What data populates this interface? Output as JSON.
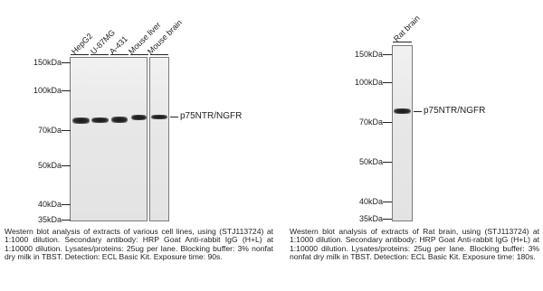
{
  "left_panel": {
    "lanes": [
      "HepG2",
      "U-87MG",
      "A-431",
      "Mouse liver",
      "Mouse brain"
    ],
    "markers": [
      "150kDa",
      "100kDa",
      "70kDa",
      "50kDa",
      "40kDa",
      "35kDa"
    ],
    "target": "p75NTR/NGFR",
    "caption": "Western blot analysis of extracts of various cell lines, using (STJ113724) at 1:1000 dilution. Secondary antibody: HRP Goat Anti-rabbit IgG (H+L) at 1:10000 dilution. Lysates/proteins: 25ug per lane. Blocking buffer: 3% nonfat dry milk in TBST. Detection: ECL Basic Kit. Exposure time: 90s."
  },
  "right_panel": {
    "lanes": [
      "Rat brain"
    ],
    "markers": [
      "150kDa",
      "100kDa",
      "70kDa",
      "50kDa",
      "40kDa",
      "35kDa"
    ],
    "target": "p75NTR/NGFR",
    "caption": "Western blot analysis of extracts of Rat brain, using (STJ113724) at 1:1000 dilution. Secondary antibody: HRP Goat Anti-rabbit IgG (H+L) at 1:10000 dilution. Lysates/proteins: 25ug per lane. Blocking buffer: 3% nonfat dry milk in TBST. Detection: ECL Basic Kit. Exposure time: 180s."
  }
}
